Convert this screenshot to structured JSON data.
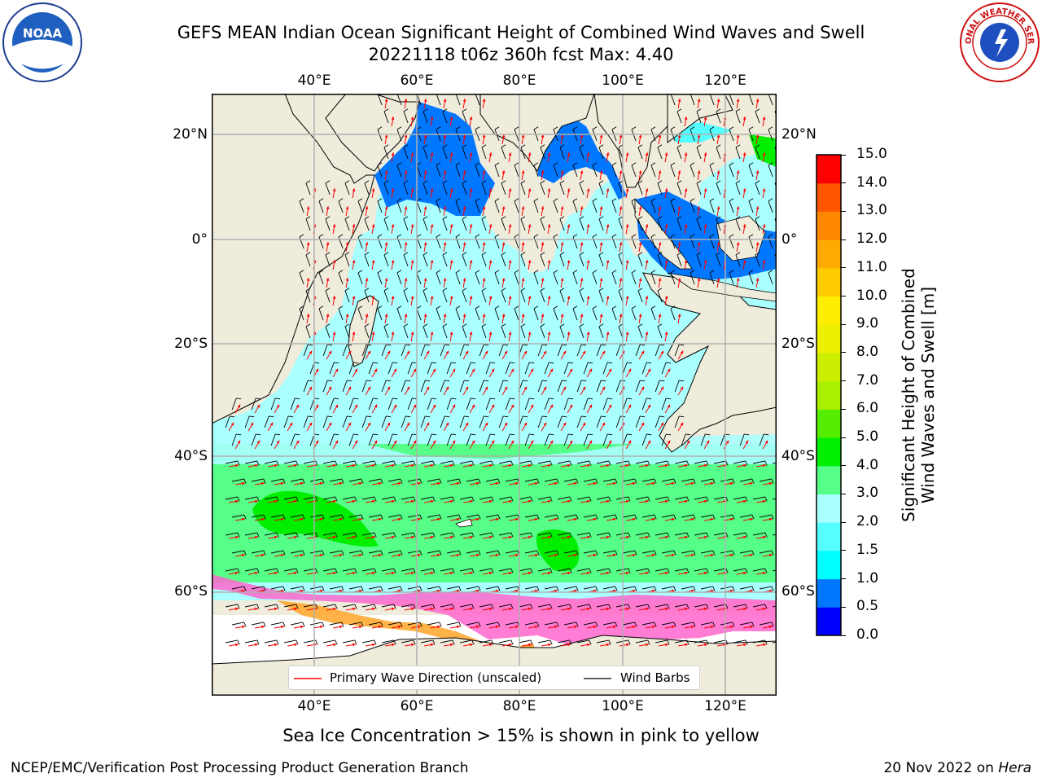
{
  "title": {
    "line1": "GEFS MEAN Indian Ocean Significant Height of Combined Wind Waves and Swell",
    "line2": "20221118 t06z 360h fcst   Max: 4.40"
  },
  "logos": {
    "left": {
      "icon": "noaa-logo",
      "text": "NOAA"
    },
    "right": {
      "icon": "national-weather-service-logo",
      "text": "NATIONAL WEATHER SERVICE"
    }
  },
  "axes": {
    "lon_ticks": [
      "40°E",
      "60°E",
      "80°E",
      "100°E",
      "120°E"
    ],
    "lat_ticks_left": [
      "20°N",
      "0°",
      "20°S",
      "40°S",
      "60°S"
    ],
    "lat_ticks_right": [
      "20°N",
      "0°",
      "20°S",
      "40°S",
      "60°S"
    ]
  },
  "legend": {
    "wave_direction": "Primary Wave Direction (unscaled)",
    "wind_barbs": "Wind Barbs",
    "wave_color": "#ff0000",
    "barb_color": "#000000"
  },
  "colorbar": {
    "title_line1": "Significant Height of Combined",
    "title_line2": "Wind Waves and Swell [m]",
    "ticks": [
      "0.0",
      "0.5",
      "1.0",
      "1.5",
      "2.0",
      "3.0",
      "4.0",
      "5.0",
      "6.0",
      "7.0",
      "8.0",
      "9.0",
      "10.0",
      "11.0",
      "12.0",
      "13.0",
      "14.0",
      "15.0"
    ],
    "colors": [
      "#0000ff",
      "#0077ff",
      "#00ffff",
      "#55ffff",
      "#aaffff",
      "#55ff88",
      "#00ee00",
      "#55ee00",
      "#aaee00",
      "#ccee00",
      "#eeee00",
      "#ffee00",
      "#ffcc00",
      "#ffaa00",
      "#ff8800",
      "#ff5500",
      "#ff0000"
    ]
  },
  "subtitle": "Sea Ice Concentration > 15% is shown in pink to yellow",
  "footer": {
    "left": "NCEP/EMC/Verification Post Processing Product Generation Branch",
    "right_prefix": "20 Nov 2022 on ",
    "right_host": "Hera"
  },
  "colors": {
    "land": "#efecdc",
    "ocean_low": "#0000ff",
    "ocean_mid": "#aaffff",
    "southern_band": "#55ff88",
    "ice": "#ff66cc"
  }
}
